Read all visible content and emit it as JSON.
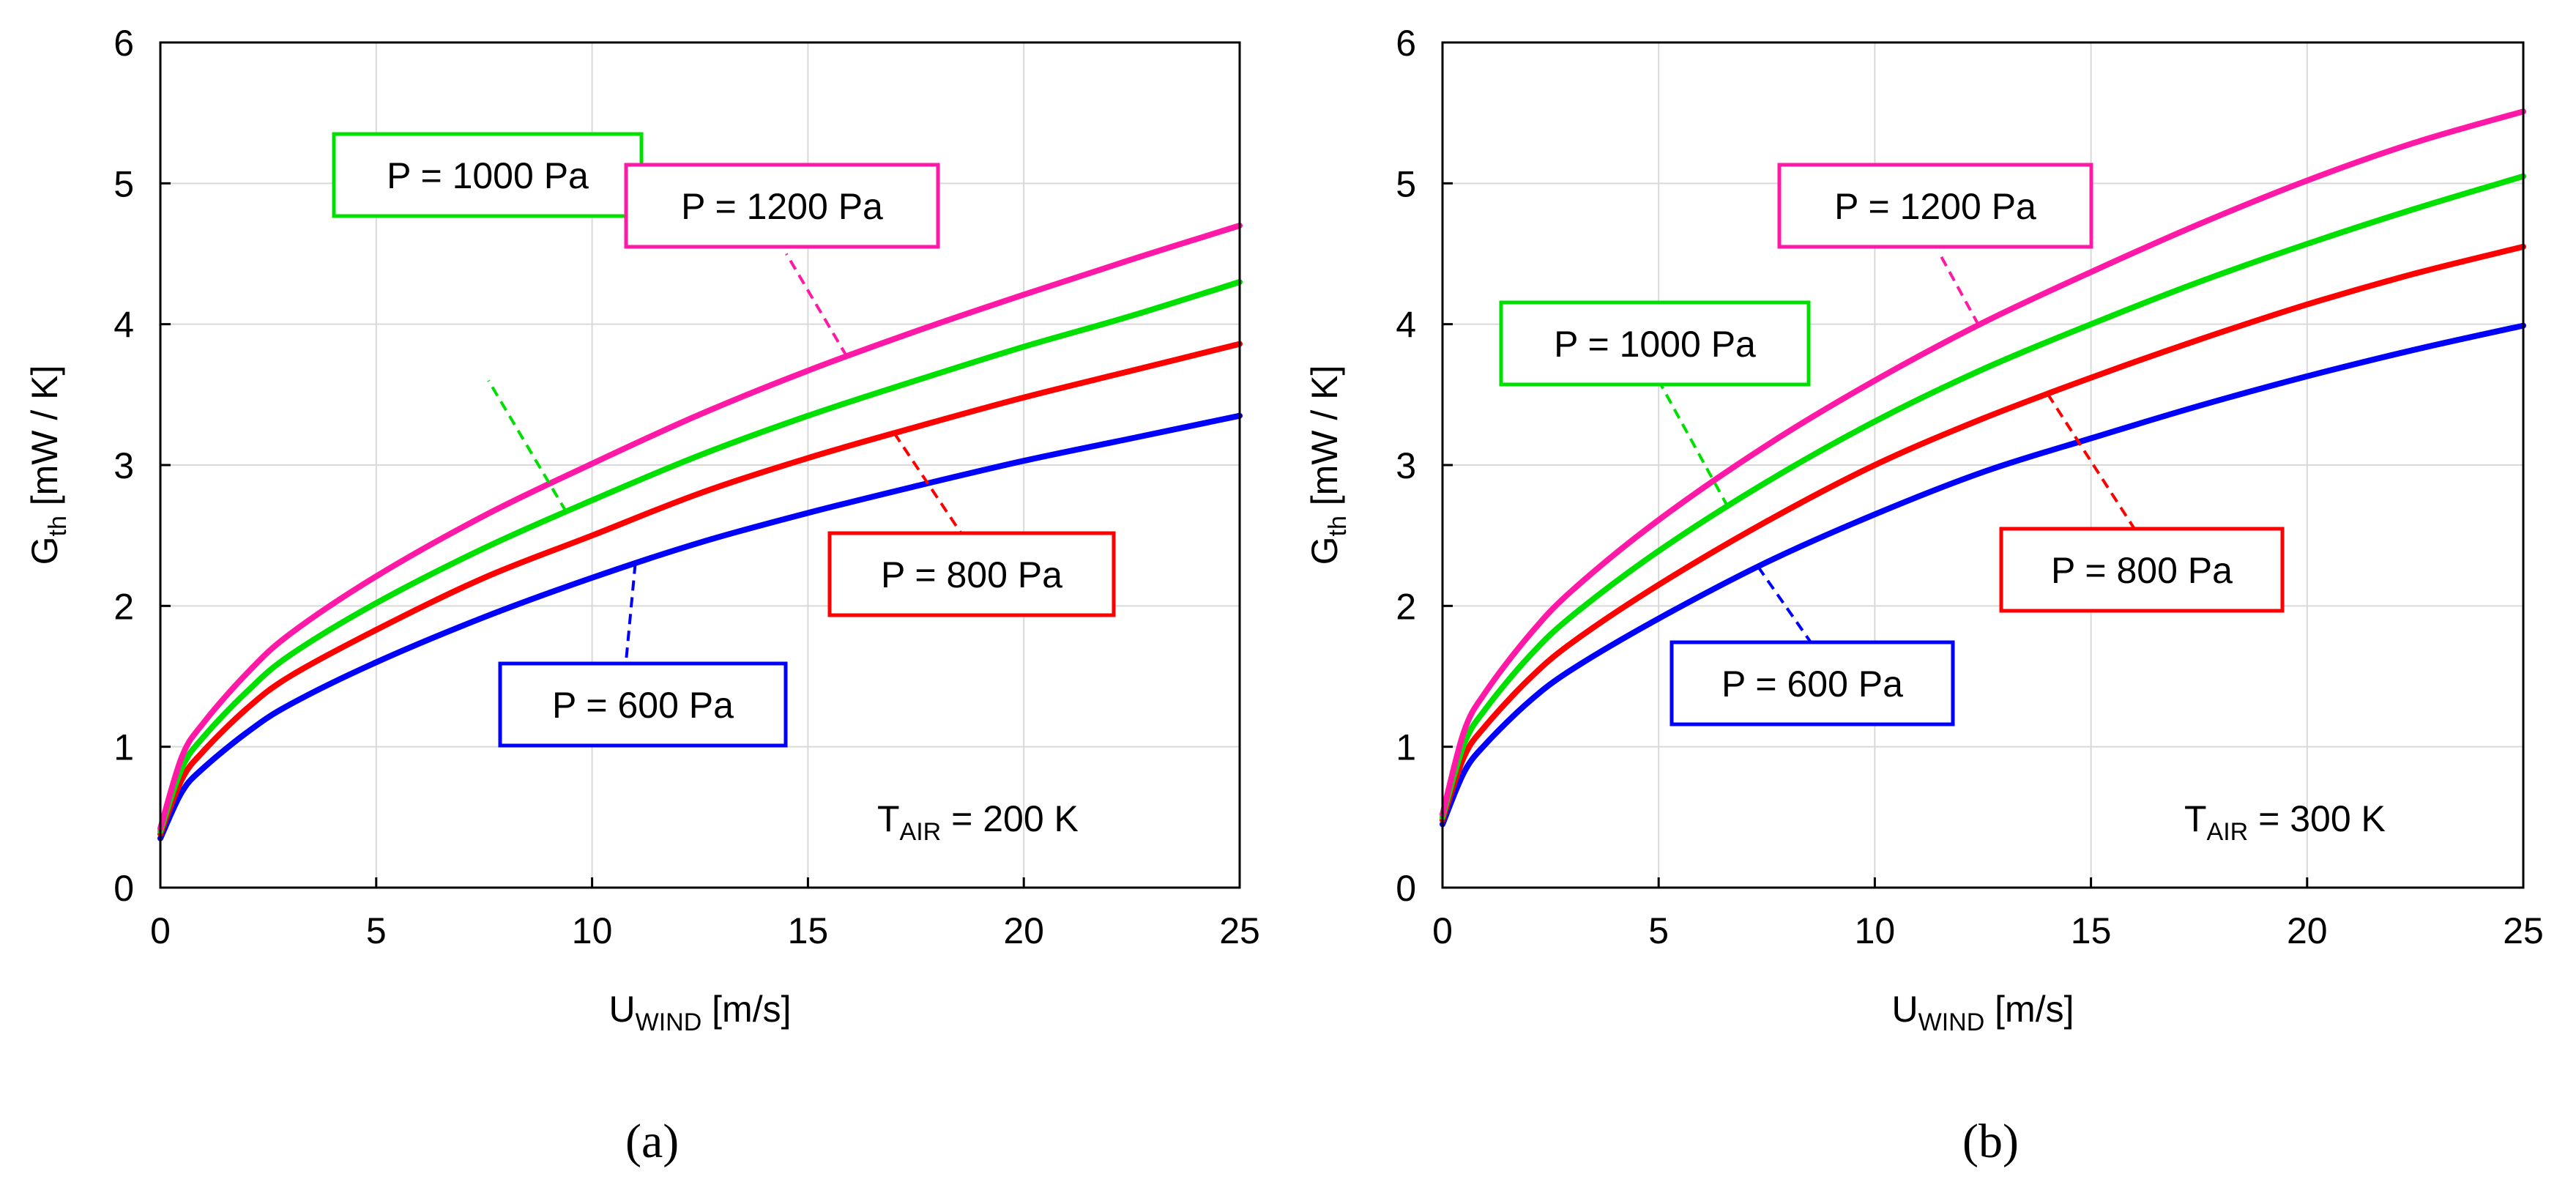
{
  "chart_data": [
    {
      "type": "line",
      "panel_label": "(a)",
      "panel_letter": "a",
      "xlabel_main": "U",
      "xlabel_sub": "WIND",
      "xlabel_unit": "[m/s]",
      "ylabel_main": "G",
      "ylabel_sub": "th",
      "ylabel_unit": "[mW / K]",
      "xlim": [
        0,
        25
      ],
      "ylim": [
        0,
        6
      ],
      "xticks": [
        0,
        5,
        10,
        15,
        20,
        25
      ],
      "yticks": [
        0,
        1,
        2,
        3,
        4,
        5,
        6
      ],
      "grid": true,
      "annotation": {
        "main": "T",
        "sub": "AIR",
        "value": "= 200 K"
      },
      "x": [
        0,
        0.5,
        1,
        2,
        3,
        5,
        7.5,
        10,
        12.5,
        15,
        17.5,
        20,
        22.5,
        25
      ],
      "series": [
        {
          "name": "P = 600 Pa",
          "color": "#0000ff",
          "values": [
            0.35,
            0.68,
            0.85,
            1.1,
            1.3,
            1.6,
            1.92,
            2.2,
            2.45,
            2.66,
            2.85,
            3.03,
            3.19,
            3.35
          ],
          "callout_at": 11.0,
          "label_end": [
            10.6,
            1.0
          ]
        },
        {
          "name": "P = 800 Pa",
          "color": "#ff0000",
          "values": [
            0.38,
            0.77,
            0.97,
            1.27,
            1.5,
            1.83,
            2.2,
            2.5,
            2.8,
            3.05,
            3.27,
            3.48,
            3.67,
            3.86
          ],
          "callout_at": 17.0,
          "label_end": [
            18.8,
            2.4
          ]
        },
        {
          "name": "P = 1000 Pa",
          "color": "#00e000",
          "values": [
            0.4,
            0.85,
            1.07,
            1.39,
            1.65,
            2.02,
            2.41,
            2.75,
            3.07,
            3.35,
            3.6,
            3.84,
            4.06,
            4.3
          ],
          "callout_at": 9.4,
          "label_end": [
            7.6,
            3.6
          ]
        },
        {
          "name": "P = 1200 Pa",
          "color": "#ff19a6",
          "values": [
            0.42,
            0.93,
            1.17,
            1.52,
            1.8,
            2.21,
            2.64,
            3.01,
            3.36,
            3.67,
            3.95,
            4.21,
            4.46,
            4.7
          ],
          "callout_at": 15.9,
          "label_end": [
            14.5,
            4.5
          ]
        }
      ]
    },
    {
      "type": "line",
      "panel_label": "(b)",
      "panel_letter": "b",
      "xlabel_main": "U",
      "xlabel_sub": "WIND",
      "xlabel_unit": "[m/s]",
      "ylabel_main": "G",
      "ylabel_sub": "th",
      "ylabel_unit": "[mW / K]",
      "xlim": [
        0,
        25
      ],
      "ylim": [
        0,
        6
      ],
      "xticks": [
        0,
        5,
        10,
        15,
        20,
        25
      ],
      "yticks": [
        0,
        1,
        2,
        3,
        4,
        5,
        6
      ],
      "grid": true,
      "annotation": {
        "main": "T",
        "sub": "AIR",
        "value": "= 300 K"
      },
      "x": [
        0,
        0.5,
        1,
        2,
        3,
        5,
        7.5,
        10,
        12.5,
        15,
        17.5,
        20,
        22.5,
        25
      ],
      "series": [
        {
          "name": "P = 600 Pa",
          "color": "#0000ff",
          "values": [
            0.45,
            0.82,
            1.02,
            1.32,
            1.55,
            1.91,
            2.31,
            2.65,
            2.95,
            3.19,
            3.42,
            3.63,
            3.82,
            3.99
          ],
          "callout_at": 7.3,
          "label_end": [
            8.5,
            1.75
          ]
        },
        {
          "name": "P = 800 Pa",
          "color": "#ff0000",
          "values": [
            0.48,
            0.93,
            1.15,
            1.48,
            1.74,
            2.15,
            2.6,
            3.0,
            3.33,
            3.62,
            3.89,
            4.14,
            4.36,
            4.55
          ],
          "callout_at": 14.0,
          "label_end": [
            16.0,
            2.55
          ]
        },
        {
          "name": "P = 1000 Pa",
          "color": "#00e000",
          "values": [
            0.5,
            1.02,
            1.27,
            1.64,
            1.93,
            2.39,
            2.88,
            3.31,
            3.68,
            4.0,
            4.3,
            4.57,
            4.82,
            5.05
          ],
          "callout_at": 6.6,
          "label_end": [
            5.0,
            3.6
          ]
        },
        {
          "name": "P = 1200 Pa",
          "color": "#ff19a6",
          "values": [
            0.52,
            1.11,
            1.39,
            1.79,
            2.11,
            2.61,
            3.14,
            3.6,
            4.01,
            4.37,
            4.71,
            5.02,
            5.29,
            5.51
          ],
          "callout_at": 12.4,
          "label_end": [
            11.5,
            4.5
          ]
        }
      ]
    }
  ]
}
